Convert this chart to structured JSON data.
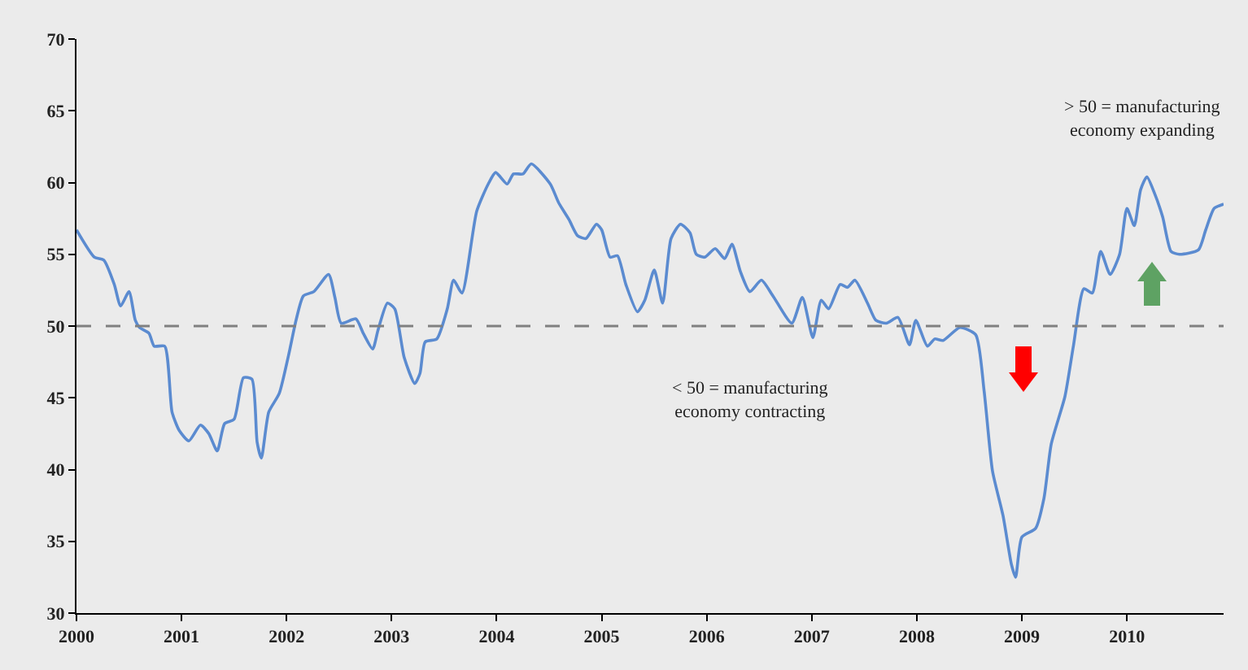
{
  "chart_data": {
    "type": "line",
    "x": [
      2000.0,
      2000.17,
      2000.26,
      2000.36,
      2000.42,
      2000.5,
      2000.56,
      2000.6,
      2000.69,
      2000.74,
      2000.84,
      2000.91,
      2000.98,
      2001.07,
      2001.18,
      2001.26,
      2001.34,
      2001.41,
      2001.5,
      2001.59,
      2001.67,
      2001.72,
      2001.76,
      2001.83,
      2001.93,
      2002.02,
      2002.09,
      2002.16,
      2002.26,
      2002.4,
      2002.46,
      2002.52,
      2002.66,
      2002.73,
      2002.82,
      2002.87,
      2002.96,
      2003.03,
      2003.12,
      2003.22,
      2003.27,
      2003.32,
      2003.43,
      2003.53,
      2003.59,
      2003.67,
      2003.81,
      2003.92,
      2003.99,
      2004.1,
      2004.16,
      2004.25,
      2004.33,
      2004.51,
      2004.59,
      2004.69,
      2004.77,
      2004.85,
      2004.95,
      2005.0,
      2005.08,
      2005.15,
      2005.23,
      2005.34,
      2005.41,
      2005.5,
      2005.58,
      2005.66,
      2005.75,
      2005.84,
      2005.9,
      2005.98,
      2006.08,
      2006.17,
      2006.24,
      2006.32,
      2006.41,
      2006.52,
      2006.63,
      2006.81,
      2006.91,
      2007.01,
      2007.09,
      2007.16,
      2007.27,
      2007.34,
      2007.41,
      2007.53,
      2007.61,
      2007.71,
      2007.82,
      2007.93,
      2007.99,
      2008.1,
      2008.17,
      2008.25,
      2008.41,
      2008.56,
      2008.64,
      2008.72,
      2008.82,
      2008.9,
      2008.94,
      2009.0,
      2009.13,
      2009.21,
      2009.28,
      2009.41,
      2009.49,
      2009.59,
      2009.67,
      2009.75,
      2009.84,
      2009.93,
      2010.0,
      2010.07,
      2010.13,
      2010.19,
      2010.26,
      2010.34,
      2010.42,
      2010.5,
      2010.68,
      2010.75,
      2010.83,
      2010.92
    ],
    "series": [
      {
        "color": "#5b8bd0",
        "values": [
          56.7,
          54.8,
          54.6,
          52.9,
          51.4,
          52.4,
          50.4,
          49.9,
          49.5,
          48.6,
          48.6,
          44.0,
          42.7,
          42.0,
          43.1,
          42.5,
          41.3,
          43.2,
          43.5,
          46.4,
          46.3,
          41.9,
          40.8,
          44.0,
          45.3,
          48.0,
          50.4,
          52.1,
          52.4,
          53.6,
          52.0,
          50.2,
          50.5,
          49.5,
          48.4,
          49.7,
          51.6,
          51.2,
          47.8,
          46.0,
          46.7,
          48.9,
          49.1,
          51.2,
          53.2,
          52.3,
          58.0,
          59.9,
          60.7,
          59.9,
          60.6,
          60.6,
          61.3,
          59.9,
          58.6,
          57.4,
          56.3,
          56.1,
          57.1,
          56.7,
          54.8,
          54.9,
          52.9,
          51.0,
          51.8,
          53.9,
          51.6,
          56.1,
          57.1,
          56.5,
          55.0,
          54.8,
          55.4,
          54.7,
          55.7,
          53.8,
          52.4,
          53.2,
          52.1,
          50.2,
          52.0,
          49.2,
          51.8,
          51.2,
          52.9,
          52.7,
          53.2,
          51.6,
          50.4,
          50.2,
          50.6,
          48.7,
          50.4,
          48.6,
          49.1,
          49.0,
          49.9,
          49.4,
          45.5,
          39.9,
          36.8,
          33.4,
          32.5,
          35.3,
          35.9,
          38.0,
          41.8,
          45.1,
          48.6,
          52.6,
          52.3,
          55.2,
          53.6,
          55.0,
          58.2,
          57.0,
          59.5,
          60.4,
          59.3,
          57.6,
          55.2,
          55.0,
          55.3,
          56.7,
          58.2,
          58.5
        ]
      }
    ],
    "xlim": [
      2000,
      2010.92
    ],
    "xticks": [
      2000,
      2001,
      2002,
      2003,
      2004,
      2005,
      2006,
      2007,
      2008,
      2009,
      2010
    ],
    "ylim": [
      30,
      70
    ],
    "yticks": [
      30,
      35,
      40,
      45,
      50,
      55,
      60,
      65,
      70
    ],
    "ref_lines": [
      {
        "axis": "y",
        "value": 50,
        "color": "#808080",
        "line_style": "dashed"
      }
    ],
    "annotations": [
      "> 50 = manufacturing\neconomy expanding",
      "< 50 = manufacturing\neconomy contracting"
    ],
    "grid": false,
    "legend": false,
    "marker": "none",
    "line_style": "solid"
  }
}
